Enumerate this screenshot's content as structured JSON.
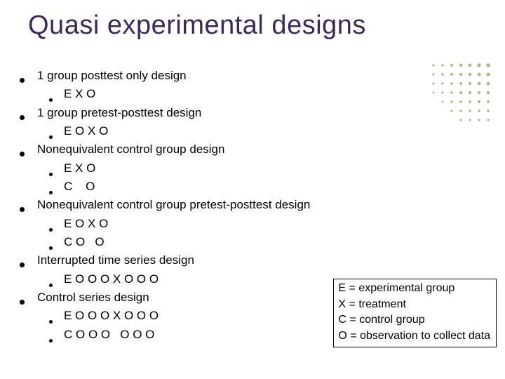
{
  "title": "Quasi experimental designs",
  "title_color": "#3b2a5a",
  "title_fontsize": 38,
  "body_fontsize": 17,
  "bullet_color": "#000000",
  "deco_dot_color": "#b5b58a",
  "background_color": "#ffffff",
  "items": [
    {
      "level": 1,
      "text": "1 group posttest only design"
    },
    {
      "level": 2,
      "text": "E X O"
    },
    {
      "level": 1,
      "text": "1 group pretest-posttest design"
    },
    {
      "level": 2,
      "text": "E O X O"
    },
    {
      "level": 1,
      "text": "Nonequivalent control group design"
    },
    {
      "level": 2,
      "text": "E X O"
    },
    {
      "level": 2,
      "text": "C    O"
    },
    {
      "level": 1,
      "text": "Nonequivalent control group pretest-posttest design"
    },
    {
      "level": 2,
      "text": "E O X O"
    },
    {
      "level": 2,
      "text": "C O   O"
    },
    {
      "level": 1,
      "text": "Interrupted time series design"
    },
    {
      "level": 2,
      "text": "E O O O X O O O"
    },
    {
      "level": 1,
      "text": "Control series design"
    },
    {
      "level": 2,
      "text": "E O O O X O O O"
    },
    {
      "level": 2,
      "text": "C O O O   O O O"
    }
  ],
  "legend": [
    "E =  experimental group",
    "X = treatment",
    "C = control group",
    "O = observation to collect data"
  ],
  "deco_dots": {
    "cols": 7,
    "rows": 7,
    "radius_base": 2.8,
    "spacing": 13
  }
}
